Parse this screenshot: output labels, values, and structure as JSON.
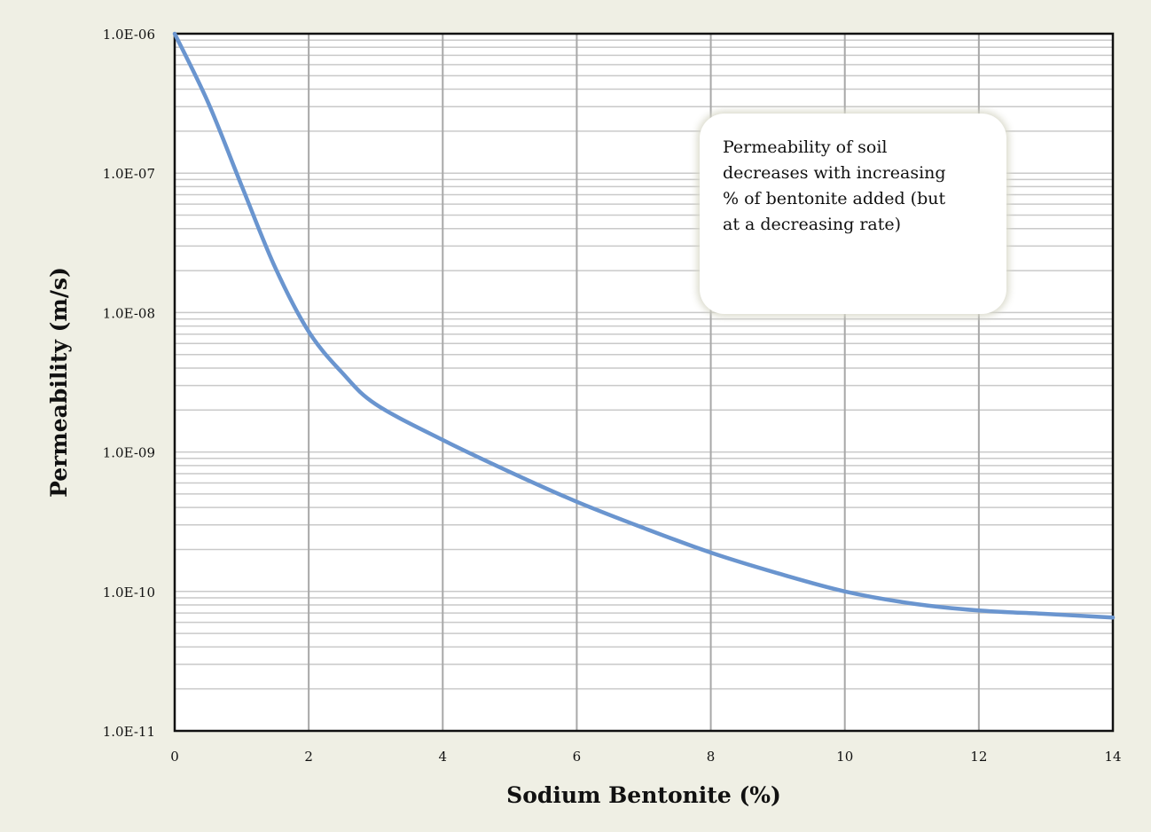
{
  "chart_data": {
    "type": "line",
    "xlabel": "Sodium Bentonite (%)",
    "ylabel": "Permeability (m/s)",
    "xlim": [
      0,
      14
    ],
    "ylim": [
      1e-11,
      1e-06
    ],
    "yscale": "log",
    "grid": true,
    "x_ticks": [
      "0",
      "2",
      "4",
      "6",
      "8",
      "10",
      "12",
      "14"
    ],
    "y_ticks": [
      "1.0E-06",
      "1.0E-07",
      "1.0E-08",
      "1.0E-09",
      "1.0E-10",
      "1.0E-11"
    ],
    "series": [
      {
        "color": "#6a95cf",
        "x": [
          0,
          0.5,
          1,
          1.5,
          2,
          2.5,
          3,
          4,
          5,
          6,
          7,
          8,
          9,
          10,
          11,
          12,
          13,
          14
        ],
        "y": [
          1e-06,
          3.2e-07,
          8.1e-08,
          2.1e-08,
          7.3e-09,
          3.7e-09,
          2.2e-09,
          1.22e-09,
          7.2e-10,
          4.4e-10,
          2.85e-10,
          1.9e-10,
          1.35e-10,
          1e-10,
          8.2e-11,
          7.3e-11,
          6.9e-11,
          6.5e-11
        ]
      }
    ],
    "annotation": "Permeability of soil\ndecreases with increasing\n% of bentonite added (but\nat a decreasing rate)"
  }
}
